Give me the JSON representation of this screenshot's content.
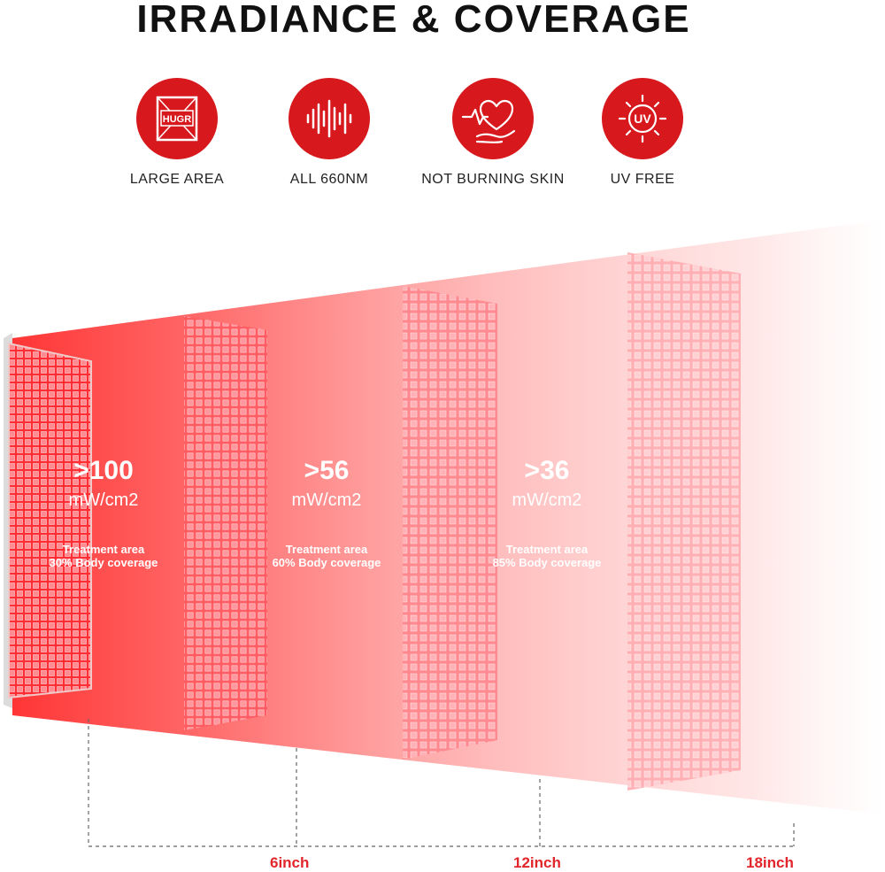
{
  "title": "IRRADIANCE & COVERAGE",
  "features": [
    {
      "label": "LARGE AREA",
      "icon": "large-area-icon",
      "badge": "HUGR"
    },
    {
      "label": "ALL 660NM",
      "icon": "wavelength-icon"
    },
    {
      "label": "NOT BURNING SKIN",
      "icon": "heart-hand-icon"
    },
    {
      "label": "UV FREE",
      "icon": "uv-sun-icon",
      "badge": "UV"
    }
  ],
  "zones": [
    {
      "value": ">100",
      "unit": "mW/cm2",
      "area_title": "Treatment area",
      "coverage": "30% Body coverage"
    },
    {
      "value": ">56",
      "unit": "mW/cm2",
      "area_title": "Treatment area",
      "coverage": "60% Body coverage"
    },
    {
      "value": ">36",
      "unit": "mW/cm2",
      "area_title": "Treatment area",
      "coverage": "85% Body coverage"
    }
  ],
  "distances": [
    "6inch",
    "12inch",
    "18inch"
  ],
  "colors": {
    "accent": "#d7191d",
    "distance_text": "#e2252b",
    "beam": "#ff3b3b"
  }
}
